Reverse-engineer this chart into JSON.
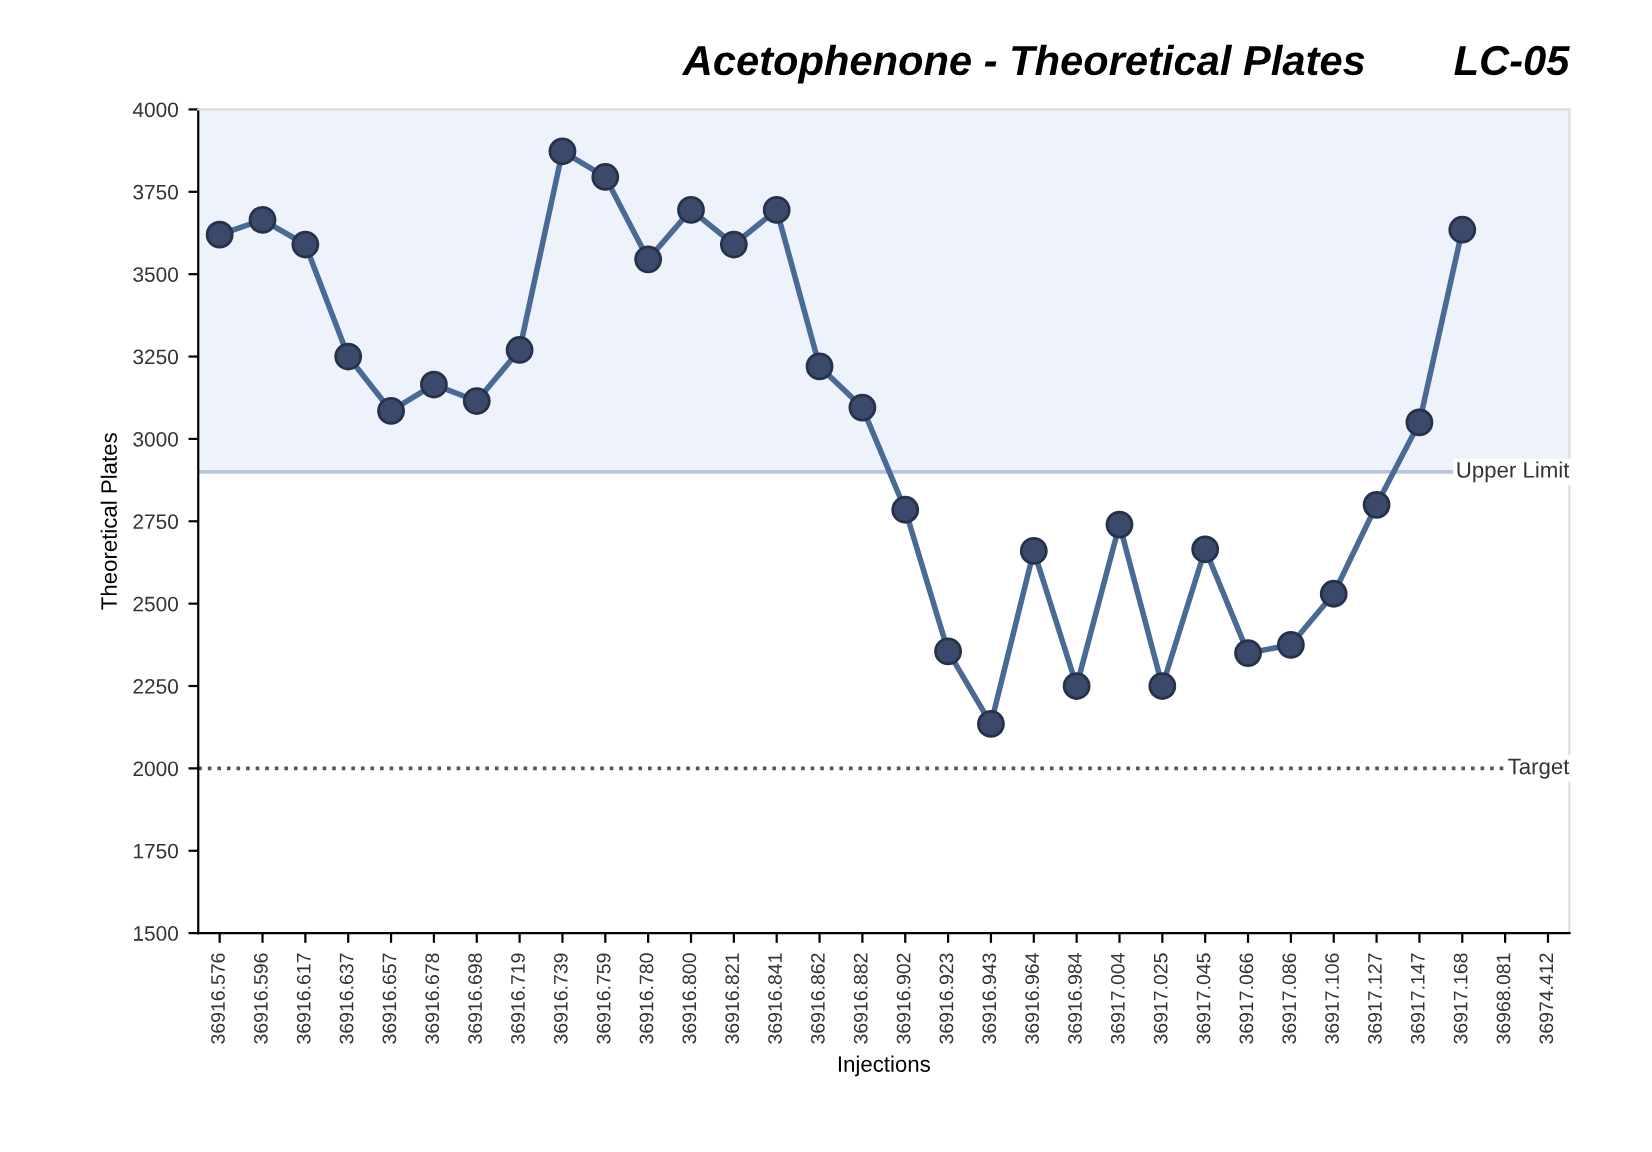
{
  "chart_data": {
    "type": "line",
    "title": "Acetophenone - Theoretical Plates",
    "subtitle": "LC-05",
    "xlabel": "Injections",
    "ylabel": "Theoretical Plates",
    "categories": [
      "36916.576",
      "36916.596",
      "36916.617",
      "36916.637",
      "36916.657",
      "36916.678",
      "36916.698",
      "36916.719",
      "36916.739",
      "36916.759",
      "36916.780",
      "36916.800",
      "36916.821",
      "36916.841",
      "36916.862",
      "36916.882",
      "36916.902",
      "36916.923",
      "36916.943",
      "36916.964",
      "36916.984",
      "36917.004",
      "36917.025",
      "36917.045",
      "36917.066",
      "36917.086",
      "36917.106",
      "36917.127",
      "36917.147",
      "36917.168",
      "36968.081",
      "36974.412"
    ],
    "series": [
      {
        "color": "#4a6a96",
        "values": [
          3620,
          3665,
          3590,
          3250,
          3085,
          3165,
          3115,
          3270,
          3873,
          3795,
          3545,
          3695,
          3590,
          3695,
          3220,
          3095,
          2785,
          2355,
          2135,
          2660,
          2250,
          2740,
          2250,
          2665,
          2350,
          2375,
          2530,
          2800,
          3050,
          3635,
          null,
          null
        ]
      }
    ],
    "ylim": [
      1500,
      4000
    ],
    "yticks": [
      1500,
      1750,
      2000,
      2250,
      2500,
      2750,
      3000,
      3250,
      3500,
      3750,
      4000
    ],
    "ref_lines": [
      {
        "axis": "y",
        "value": 2900,
        "label": "Upper Limit",
        "color": "#b8c4d8",
        "line_style": "solid"
      },
      {
        "axis": "y",
        "value": 2000,
        "label": "Target",
        "color": "#555555",
        "line_style": "dotted"
      }
    ],
    "bands": [
      {
        "axis": "y",
        "from": 2900,
        "to": 4000,
        "color": "#eef2fa"
      }
    ],
    "marker": "circle",
    "line_style": "solid",
    "grid": false,
    "legend": false
  }
}
